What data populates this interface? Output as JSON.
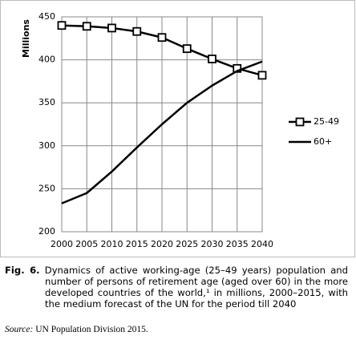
{
  "chart_data": {
    "type": "line",
    "y_label": "Millions",
    "x": [
      2000,
      2005,
      2010,
      2015,
      2020,
      2025,
      2030,
      2035,
      2040
    ],
    "xlim": [
      2000,
      2040
    ],
    "xticks": [
      2000,
      2005,
      2010,
      2015,
      2020,
      2025,
      2030,
      2035,
      2040
    ],
    "ylim": [
      200,
      450
    ],
    "yticks": [
      200,
      250,
      300,
      350,
      400,
      450
    ],
    "grid": true,
    "legend": "right",
    "series": [
      {
        "name": "25-49",
        "color": "#000000",
        "marker": "square",
        "values": [
          440,
          439,
          437,
          433,
          426,
          413,
          401,
          390,
          382
        ]
      },
      {
        "name": "60+",
        "color": "#000000",
        "marker": "none",
        "values": [
          233,
          245,
          270,
          298,
          325,
          350,
          370,
          387,
          398
        ]
      }
    ]
  },
  "caption": {
    "label": "Fig. 6.",
    "text": "Dynamics of active working-age (25–49 years) population and number of persons of retirement age (aged over 60) in the more developed countries of the world,¹ in millions, 2000–2015, with the medium forecast of the UN for the period till 2040"
  },
  "source": {
    "label": "Source:",
    "text": "UN Population Division 2015."
  }
}
